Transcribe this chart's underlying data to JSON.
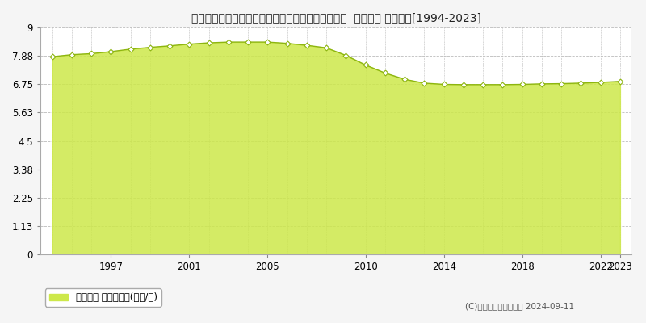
{
  "title": "山形県東置賜郡高畠町大字福沢字鎌塚台１５０番６  地価公示 地価推移[1994-2023]",
  "years": [
    1994,
    1995,
    1996,
    1997,
    1998,
    1999,
    2000,
    2001,
    2002,
    2003,
    2004,
    2005,
    2006,
    2007,
    2008,
    2009,
    2010,
    2011,
    2012,
    2013,
    2014,
    2015,
    2016,
    2017,
    2018,
    2019,
    2020,
    2021,
    2022,
    2023
  ],
  "values": [
    7.85,
    7.93,
    7.97,
    8.05,
    8.15,
    8.22,
    8.28,
    8.35,
    8.4,
    8.43,
    8.43,
    8.43,
    8.38,
    8.3,
    8.2,
    7.9,
    7.52,
    7.2,
    6.95,
    6.8,
    6.75,
    6.74,
    6.74,
    6.74,
    6.75,
    6.77,
    6.78,
    6.8,
    6.83,
    6.87
  ],
  "line_color": "#8db510",
  "fill_color": "#cde84a",
  "fill_alpha": 0.85,
  "marker_color": "#ffffff",
  "marker_edge_color": "#8db510",
  "yticks": [
    0,
    1.13,
    2.25,
    3.38,
    4.5,
    5.63,
    6.75,
    7.88,
    9
  ],
  "ytick_labels": [
    "0",
    "1.13",
    "2.25",
    "3.38",
    "4.5",
    "5.63",
    "6.75",
    "7.88",
    "9"
  ],
  "xticks": [
    1997,
    2001,
    2005,
    2010,
    2014,
    2018,
    2022,
    2023
  ],
  "xtick_labels": [
    "1997",
    "2001",
    "2005",
    "2010",
    "2014",
    "2018",
    "2022",
    "2023"
  ],
  "ylim": [
    0,
    9
  ],
  "xlim_start": 1993.4,
  "xlim_end": 2023.6,
  "grid_color": "#bbbbbb",
  "bg_color": "#f5f5f5",
  "plot_bg_color": "#ffffff",
  "legend_label": "地価公示 平均坪単価(万円/坪)",
  "copyright_text": "(C)土地価格ドットコム 2024-09-11",
  "title_fontsize": 10.5,
  "tick_fontsize": 8.5,
  "legend_fontsize": 8.5
}
